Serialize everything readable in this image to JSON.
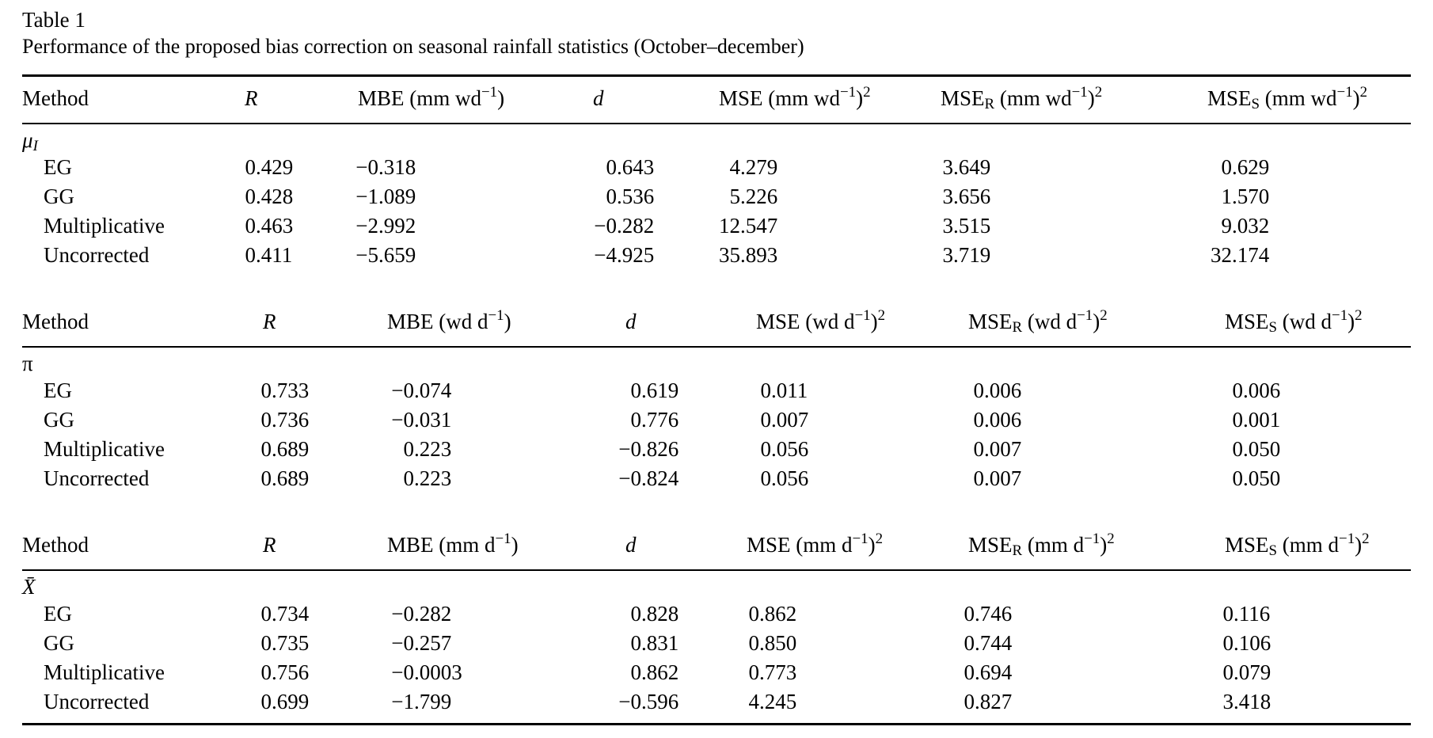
{
  "table": {
    "title": "Table 1",
    "caption": "Performance of the proposed bias correction on seasonal rainfall statistics (October–december)",
    "sections": [
      {
        "label": "μ_[I]",
        "headers": [
          "Method",
          "R",
          "MBE (mm wd^[−1])",
          "d",
          "MSE (mm wd^[−1])^[2]",
          "MSE_[R] (mm wd^[−1])^[2]",
          "MSE_[S] (mm wd^[−1])^[2]"
        ],
        "rows": [
          {
            "method": "EG",
            "values": [
              "0.429",
              "−0.318",
              "0.643",
              "4.279",
              "3.649",
              "0.629"
            ]
          },
          {
            "method": "GG",
            "values": [
              "0.428",
              "−1.089",
              "0.536",
              "5.226",
              "3.656",
              "1.570"
            ]
          },
          {
            "method": "Multiplicative",
            "values": [
              "0.463",
              "−2.992",
              "−0.282",
              "12.547",
              "3.515",
              "9.032"
            ]
          },
          {
            "method": "Uncorrected",
            "values": [
              "0.411",
              "−5.659",
              "−4.925",
              "35.893",
              "3.719",
              "32.174"
            ]
          }
        ]
      },
      {
        "label": "π",
        "headers": [
          "Method",
          "R",
          "MBE (wd d^[−1])",
          "d",
          "MSE (wd d^[−1])^[2]",
          "MSE_[R] (wd d^[−1])^[2]",
          "MSE_[S] (wd d^[−1])^[2]"
        ],
        "rows": [
          {
            "method": "EG",
            "values": [
              "0.733",
              "−0.074",
              "0.619",
              "0.011",
              "0.006",
              "0.006"
            ]
          },
          {
            "method": "GG",
            "values": [
              "0.736",
              "−0.031",
              "0.776",
              "0.007",
              "0.006",
              "0.001"
            ]
          },
          {
            "method": "Multiplicative",
            "values": [
              "0.689",
              "0.223",
              "−0.826",
              "0.056",
              "0.007",
              "0.050"
            ]
          },
          {
            "method": "Uncorrected",
            "values": [
              "0.689",
              "0.223",
              "−0.824",
              "0.056",
              "0.007",
              "0.050"
            ]
          }
        ]
      },
      {
        "label": "X̄",
        "headers": [
          "Method",
          "R",
          "MBE (mm d^[−1])",
          "d",
          "MSE (mm d^[−1])^[2]",
          "MSE_[R] (mm d^[−1])^[2]",
          "MSE_[S] (mm d^[−1])^[2]"
        ],
        "rows": [
          {
            "method": "EG",
            "values": [
              "0.734",
              "−0.282",
              "0.828",
              "0.862",
              "0.746",
              "0.116"
            ]
          },
          {
            "method": "GG",
            "values": [
              "0.735",
              "−0.257",
              "0.831",
              "0.850",
              "0.744",
              "0.106"
            ]
          },
          {
            "method": "Multiplicative",
            "values": [
              "0.756",
              "−0.0003",
              "0.862",
              "0.773",
              "0.694",
              "0.079"
            ]
          },
          {
            "method": "Uncorrected",
            "values": [
              "0.699",
              "−1.799",
              "−0.596",
              "4.245",
              "0.827",
              "3.418"
            ]
          }
        ]
      }
    ]
  }
}
